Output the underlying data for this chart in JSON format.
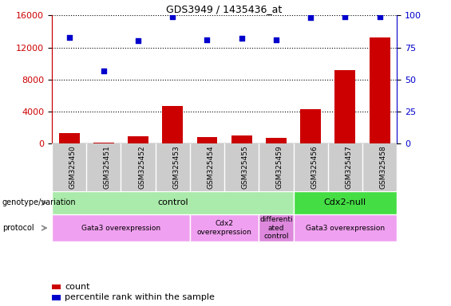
{
  "title": "GDS3949 / 1435436_at",
  "samples": [
    "GSM325450",
    "GSM325451",
    "GSM325452",
    "GSM325453",
    "GSM325454",
    "GSM325455",
    "GSM325459",
    "GSM325456",
    "GSM325457",
    "GSM325458"
  ],
  "counts": [
    1300,
    100,
    900,
    4700,
    800,
    1000,
    700,
    4300,
    9200,
    13200
  ],
  "percentiles": [
    83,
    57,
    80,
    99,
    81,
    82,
    81,
    98,
    99,
    99
  ],
  "bar_color": "#cc0000",
  "dot_color": "#0000cc",
  "ylim_left": [
    0,
    16000
  ],
  "ylim_right": [
    0,
    100
  ],
  "yticks_left": [
    0,
    4000,
    8000,
    12000,
    16000
  ],
  "yticks_right": [
    0,
    25,
    50,
    75,
    100
  ],
  "genotype_groups": [
    {
      "label": "control",
      "start": 0,
      "end": 7,
      "color": "#aaeaaa"
    },
    {
      "label": "Cdx2-null",
      "start": 7,
      "end": 10,
      "color": "#44dd44"
    }
  ],
  "protocol_groups": [
    {
      "label": "Gata3 overexpression",
      "start": 0,
      "end": 4,
      "color": "#f0a0f0"
    },
    {
      "label": "Cdx2\noverexpression",
      "start": 4,
      "end": 6,
      "color": "#f0a0f0"
    },
    {
      "label": "differenti\nated\ncontrol",
      "start": 6,
      "end": 7,
      "color": "#dd88dd"
    },
    {
      "label": "Gata3 overexpression",
      "start": 7,
      "end": 10,
      "color": "#f0a0f0"
    }
  ],
  "left_label_color": "#cc0000",
  "right_label_color": "#0000cc",
  "tick_area_color": "#cccccc",
  "genotype_label": "genotype/variation",
  "protocol_label": "protocol",
  "legend_count_label": "count",
  "legend_pct_label": "percentile rank within the sample"
}
